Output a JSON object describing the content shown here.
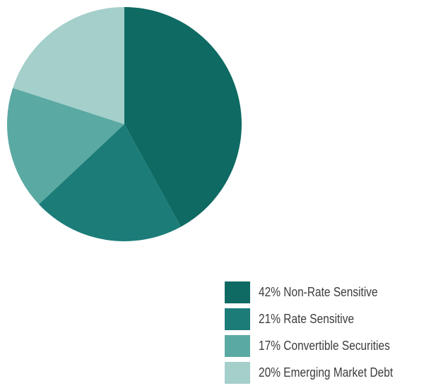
{
  "chart_data": {
    "type": "pie",
    "slices": [
      {
        "label": "42% Non-Rate Sensitive",
        "value": 42,
        "color": "#0e6a63"
      },
      {
        "label": "21% Rate Sensitive",
        "value": 21,
        "color": "#1b7c78"
      },
      {
        "label": "17% Convertible Securities",
        "value": 17,
        "color": "#5ba9a3"
      },
      {
        "label": "20% Emerging Market Debt",
        "value": 20,
        "color": "#a4cfca"
      }
    ],
    "start": "12 o'clock",
    "direction": "clockwise",
    "legend": "bottom-right"
  }
}
